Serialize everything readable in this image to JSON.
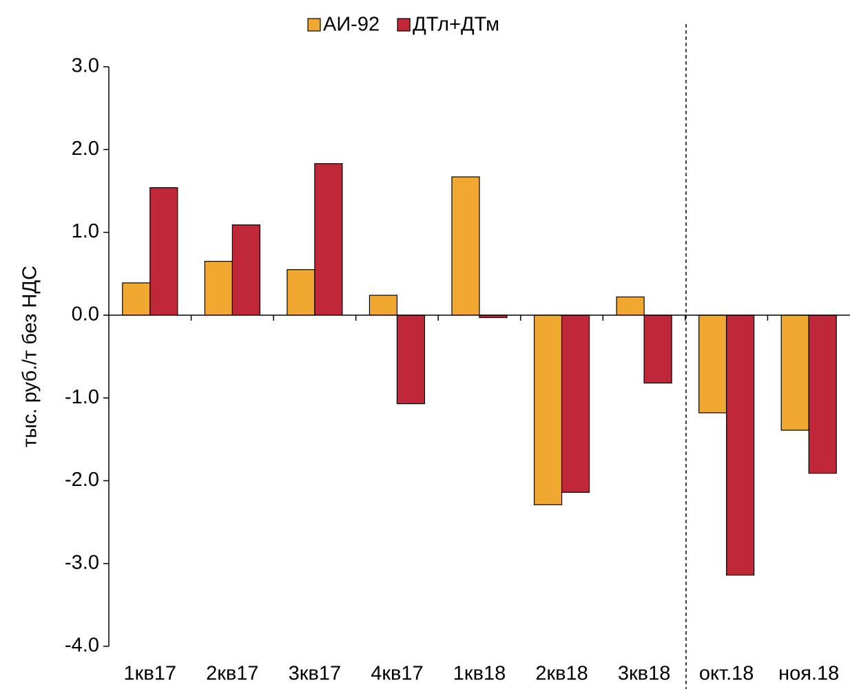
{
  "chart_data": {
    "type": "bar",
    "categories": [
      "1кв17",
      "2кв17",
      "3кв17",
      "4кв17",
      "1кв18",
      "2кв18",
      "3кв18",
      "окт.18",
      "ноя.18"
    ],
    "series": [
      {
        "name": "АИ-92",
        "color": "#f0a830",
        "values": [
          0.39,
          0.65,
          0.55,
          0.24,
          1.67,
          -2.29,
          0.22,
          -1.18,
          -1.39
        ]
      },
      {
        "name": "ДТл+ДТм",
        "color": "#c0283a",
        "values": [
          1.54,
          1.09,
          1.83,
          -1.07,
          -0.03,
          -2.14,
          -0.82,
          -3.14,
          -1.91
        ]
      }
    ],
    "y_label": "тыс. руб./т без НДС",
    "ylim": [
      -4,
      3
    ],
    "yticks": [
      {
        "value": 3,
        "label": "3.0"
      },
      {
        "value": 2,
        "label": "2.0"
      },
      {
        "value": 1,
        "label": "1.0"
      },
      {
        "value": 0,
        "label": "0.0"
      },
      {
        "value": -1,
        "label": "-1.0"
      },
      {
        "value": -2,
        "label": "-2.0"
      },
      {
        "value": -3,
        "label": "-3.0"
      },
      {
        "value": -4,
        "label": "-4.0"
      }
    ],
    "grid": false,
    "legend": "top"
  }
}
